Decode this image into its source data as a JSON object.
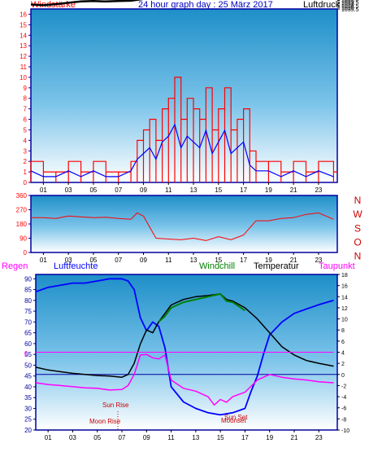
{
  "header": {
    "left_label": "Windstärke",
    "title": "24 hour graph day : 25 März 2017",
    "right_label": "Luftdruck"
  },
  "wind_dir_labels": [
    "N",
    "W",
    "S",
    "O",
    "N"
  ],
  "legend": {
    "rain": "Regen",
    "humidity": "Luftfeuchte",
    "windchill": "Windchill",
    "temperature": "Temperatur",
    "dewpoint": "Taupunkt"
  },
  "annotations": {
    "sun_rise": "Sun Rise",
    "moon_rise": "Moon Rise",
    "sun_set": "Sun Set",
    "moon_set": "Moonset",
    "rain_zero": "0"
  },
  "colors": {
    "frame_blue": "#0000a0",
    "wind_red": "#ff0000",
    "wind_blue": "#0000ff",
    "pressure": "#000000",
    "humidity": "#0000ff",
    "temperature": "#000000",
    "windchill": "#008000",
    "dewpoint": "#ff00ff",
    "rain": "#ff00ff",
    "title_blue": "#0000c0",
    "bg_top": "#1e8fc8",
    "bg_bottom": "#ffffff"
  },
  "chart_data": [
    {
      "type": "line",
      "title": "24 hour graph day : 25 März 2017",
      "x_ticks": [
        "01",
        "03",
        "05",
        "07",
        "09",
        "11",
        "13",
        "15",
        "17",
        "19",
        "21",
        "23"
      ],
      "x_range_hours": [
        0,
        24.5
      ],
      "y_left": {
        "label": "Windstärke",
        "range": [
          0,
          16.5
        ],
        "ticks": [
          "0",
          "1",
          "2",
          "3",
          "4",
          "5",
          "6",
          "7",
          "8",
          "9",
          "10",
          "11",
          "12",
          "13",
          "14",
          "15",
          "16"
        ]
      },
      "y_right": {
        "label": "Luftdruck",
        "range": [
          1086.25,
          1035.5
        ],
        "ticks": [
          "1035.5",
          "1035",
          "1034.5",
          "1034",
          "1033.5",
          "1033",
          "1032.5",
          "1032",
          "1031.5",
          "1031",
          "1030.5",
          "1030",
          "1029.5",
          "1029",
          "1028.5",
          "1028",
          "1027.5",
          "1027",
          "1026.5"
        ]
      },
      "series": [
        {
          "name": "Luftdruck",
          "axis": "right",
          "x": [
            0,
            1,
            2,
            3,
            4,
            5,
            6,
            7,
            8,
            9,
            10,
            11,
            12,
            13,
            14,
            15,
            16,
            17,
            18,
            19,
            20,
            21,
            22,
            23,
            24.2
          ],
          "values": [
            1034.2,
            1034.4,
            1034.1,
            1033.7,
            1033.3,
            1033.2,
            1033.3,
            1033.2,
            1033.1,
            1032.6,
            1032.4,
            1032.0,
            1031.0,
            1030.3,
            1029.7,
            1028.8,
            1028.1,
            1027.6,
            1027.4,
            1027.6,
            1027.8,
            1027.6,
            1027.7,
            1027.4,
            1027.5
          ]
        },
        {
          "name": "Windstärke",
          "axis": "left",
          "x": [
            0,
            1,
            2,
            3,
            4,
            5,
            6,
            7,
            8,
            8.5,
            9,
            9.5,
            10,
            10.5,
            11,
            11.5,
            12,
            12.5,
            13,
            13.5,
            14,
            14.5,
            15,
            15.5,
            16,
            16.5,
            17,
            17.5,
            18,
            19,
            20,
            21,
            22,
            23,
            24.2
          ],
          "values": [
            2,
            1,
            1,
            2,
            1,
            2,
            1,
            1,
            2,
            4,
            5,
            6,
            4,
            7,
            8,
            10,
            6,
            8,
            7,
            6,
            9,
            5,
            7,
            9,
            5,
            6,
            7,
            3,
            2,
            2,
            1,
            2,
            1,
            2,
            1
          ]
        }
      ]
    },
    {
      "type": "line",
      "x_ticks": [
        "01",
        "03",
        "05",
        "07",
        "09",
        "11",
        "13",
        "15",
        "17",
        "19",
        "21",
        "23"
      ],
      "x_range_hours": [
        0,
        24.5
      ],
      "y_left": {
        "range": [
          0,
          360
        ],
        "ticks": [
          "360",
          "270",
          "180",
          "90",
          "0"
        ]
      },
      "y_right_ticks": [
        "N",
        "W",
        "S",
        "O",
        "N"
      ],
      "series": [
        {
          "name": "Windrichtung",
          "x": [
            0,
            1,
            2,
            3,
            4,
            5,
            6,
            7,
            8,
            8.5,
            9,
            10,
            11,
            12,
            13,
            14,
            15,
            16,
            17,
            18,
            19,
            20,
            21,
            22,
            23,
            24.2
          ],
          "values": [
            220,
            220,
            215,
            230,
            225,
            220,
            222,
            215,
            210,
            250,
            230,
            90,
            85,
            80,
            90,
            75,
            100,
            80,
            110,
            200,
            200,
            215,
            220,
            240,
            250,
            210
          ]
        }
      ]
    },
    {
      "type": "line",
      "x_ticks": [
        "01",
        "03",
        "05",
        "07",
        "09",
        "11",
        "13",
        "15",
        "17",
        "19",
        "21",
        "23"
      ],
      "x_range_hours": [
        0,
        24.5
      ],
      "y_left": {
        "label": "Luftfeuchte",
        "range": [
          20,
          92
        ],
        "ticks": [
          "90",
          "85",
          "80",
          "75",
          "70",
          "65",
          "60",
          "55",
          "50",
          "45",
          "40",
          "35",
          "30",
          "25",
          "20"
        ]
      },
      "y_right": {
        "label": "Temperatur",
        "range": [
          -10,
          18
        ],
        "ticks": [
          "18",
          "16",
          "14",
          "12",
          "10",
          "8",
          "6",
          "4",
          "2",
          "0",
          "-2",
          "-4",
          "-6",
          "-8",
          "-10"
        ]
      },
      "series": [
        {
          "name": "Luftfeuchte",
          "axis": "left",
          "x": [
            0,
            1,
            2,
            3,
            4,
            5,
            6,
            7,
            7.5,
            8,
            8.5,
            9,
            9.5,
            10,
            10.5,
            11,
            12,
            13,
            14,
            15,
            16,
            17,
            17.5,
            18,
            18.5,
            19,
            20,
            21,
            22,
            23,
            24.2
          ],
          "values": [
            84,
            86,
            87,
            88,
            88,
            89,
            90,
            90,
            89,
            85,
            72,
            66,
            70,
            68,
            58,
            40,
            33,
            30,
            28,
            27,
            28,
            30,
            38,
            45,
            55,
            64,
            70,
            74,
            76,
            78,
            80
          ]
        },
        {
          "name": "Temperatur",
          "axis": "right",
          "x": [
            0,
            1,
            2,
            3,
            4,
            5,
            6,
            7,
            7.5,
            8,
            8.5,
            9,
            9.5,
            10,
            10.5,
            11,
            12,
            13,
            14,
            15,
            15.5,
            16,
            17,
            18,
            19,
            20,
            21,
            22,
            23,
            24.2
          ],
          "values": [
            1.3,
            0.8,
            0.5,
            0.2,
            0,
            -0.2,
            -0.3,
            -0.5,
            0,
            2,
            5.5,
            8,
            7.5,
            9.5,
            11,
            12.5,
            13.5,
            14,
            14.2,
            14.5,
            13.5,
            13.2,
            12,
            10,
            7.5,
            5,
            3.5,
            2.5,
            2,
            1.5
          ]
        },
        {
          "name": "Windchill",
          "axis": "right",
          "x": [
            10,
            10.5,
            11,
            12,
            13,
            14,
            15,
            15.5,
            16,
            17
          ],
          "values": [
            9.5,
            10.5,
            12,
            13,
            13.5,
            14,
            14.5,
            13.2,
            13,
            11.5
          ]
        },
        {
          "name": "Taupunkt",
          "axis": "right",
          "x": [
            0,
            1,
            2,
            3,
            4,
            5,
            6,
            7,
            7.5,
            8,
            8.5,
            9,
            9.5,
            10,
            10.5,
            11,
            12,
            13,
            14,
            14.5,
            15,
            15.5,
            16,
            17,
            18,
            19,
            20,
            21,
            22,
            23,
            24.2
          ],
          "values": [
            -1.5,
            -1.8,
            -2,
            -2.2,
            -2.4,
            -2.5,
            -2.8,
            -2.7,
            -2,
            0,
            3.5,
            3.6,
            3,
            2.8,
            3.5,
            -1,
            -2.5,
            -3,
            -4,
            -5.5,
            -4.5,
            -5,
            -4,
            -3.2,
            -1,
            0,
            -0.5,
            -0.8,
            -1,
            -1.3,
            -1.5
          ]
        },
        {
          "name": "Regen",
          "axis": "right",
          "x": [
            0,
            24.2
          ],
          "values": [
            4,
            4
          ]
        }
      ]
    }
  ]
}
